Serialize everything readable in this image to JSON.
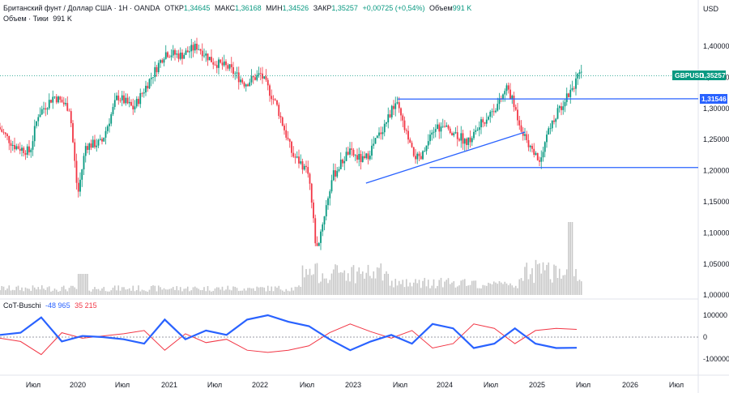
{
  "header": {
    "symbol_line": "Британский фунт / Доллар США · 1Н · OANDA",
    "open_label": "ОТКР",
    "open": "1,34645",
    "high_label": "МАКС",
    "high": "1,36168",
    "low_label": "МИН",
    "low": "1,34526",
    "close_label": "ЗАКР",
    "close": "1,35257",
    "change": "+0,00725 (+0,54%)",
    "volume_label": "Объем",
    "volume": "991 K",
    "volume_line": "Объем · Тики",
    "volume_line_value": "991 K"
  },
  "price_axis": {
    "currency": "USD",
    "ticks": [
      "1,40000",
      "1,35000",
      "1,30000",
      "1,25000",
      "1,20000",
      "1,15000",
      "1,10000",
      "1,05000",
      "1,00000"
    ],
    "current_label": "GBPUSD",
    "current_value": "1,35257",
    "level_value": "1,31546"
  },
  "cot_panel": {
    "name": "CoT-Buschi",
    "value1": "-48 965",
    "value2": "35 215",
    "ticks": [
      "100000",
      "0",
      "-100000"
    ]
  },
  "time_axis": {
    "labels": [
      "Июл",
      "2020",
      "Июл",
      "2021",
      "Июл",
      "2022",
      "Июл",
      "2023",
      "Июл",
      "2024",
      "Июл",
      "2025",
      "Июл",
      "2026",
      "Июл"
    ]
  },
  "colors": {
    "up": "#089981",
    "down": "#f23645",
    "trendline": "#2962ff",
    "cot_blue": "#2962ff",
    "cot_red": "#f23645",
    "volume": "#c8c8c8",
    "current_price": "#089981"
  },
  "chart_data": {
    "type": "candlestick",
    "symbol": "GBPUSD",
    "timeframe": "weekly bars",
    "price_range": [
      0.985,
      1.455
    ],
    "close_points": [
      [
        "2019-05",
        1.27
      ],
      [
        "2019-07",
        1.24
      ],
      [
        "2019-09",
        1.23
      ],
      [
        "2019-10",
        1.29
      ],
      [
        "2019-12",
        1.32
      ],
      [
        "2020-02",
        1.3
      ],
      [
        "2020-03",
        1.16
      ],
      [
        "2020-04",
        1.24
      ],
      [
        "2020-06",
        1.245
      ],
      [
        "2020-08",
        1.32
      ],
      [
        "2020-10",
        1.3
      ],
      [
        "2020-12",
        1.345
      ],
      [
        "2021-02",
        1.39
      ],
      [
        "2021-04",
        1.385
      ],
      [
        "2021-06",
        1.4
      ],
      [
        "2021-08",
        1.375
      ],
      [
        "2021-10",
        1.365
      ],
      [
        "2021-12",
        1.34
      ],
      [
        "2022-02",
        1.355
      ],
      [
        "2022-04",
        1.305
      ],
      [
        "2022-06",
        1.225
      ],
      [
        "2022-08",
        1.2
      ],
      [
        "2022-09",
        1.07
      ],
      [
        "2022-11",
        1.19
      ],
      [
        "2023-01",
        1.23
      ],
      [
        "2023-03",
        1.215
      ],
      [
        "2023-05",
        1.26
      ],
      [
        "2023-07",
        1.31
      ],
      [
        "2023-09",
        1.23
      ],
      [
        "2023-10",
        1.215
      ],
      [
        "2023-12",
        1.27
      ],
      [
        "2024-02",
        1.265
      ],
      [
        "2024-04",
        1.245
      ],
      [
        "2024-06",
        1.28
      ],
      [
        "2024-08",
        1.31
      ],
      [
        "2024-09",
        1.335
      ],
      [
        "2024-11",
        1.26
      ],
      [
        "2025-01",
        1.215
      ],
      [
        "2025-02",
        1.26
      ],
      [
        "2025-04",
        1.31
      ],
      [
        "2025-06",
        1.352
      ]
    ],
    "trendlines": [
      {
        "from": [
          "2023-03",
          1.18
        ],
        "to": [
          "2024-11",
          1.262
        ]
      },
      {
        "from": [
          "2023-07",
          1.315
        ],
        "to": [
          "2026-12",
          1.3155
        ],
        "label": "1,31546"
      },
      {
        "from": [
          "2023-11",
          1.205
        ],
        "to": [
          "2026-12",
          1.205
        ]
      }
    ],
    "cot": {
      "name": "CoT-Buschi",
      "range": [
        -150000,
        150000
      ],
      "blue": [
        [
          0,
          10000
        ],
        [
          2,
          20000
        ],
        [
          4,
          90000
        ],
        [
          6,
          -20000
        ],
        [
          8,
          5000
        ],
        [
          10,
          0
        ],
        [
          12,
          -10000
        ],
        [
          14,
          -30000
        ],
        [
          16,
          80000
        ],
        [
          18,
          -10000
        ],
        [
          20,
          30000
        ],
        [
          22,
          10000
        ],
        [
          24,
          80000
        ],
        [
          26,
          100000
        ],
        [
          28,
          70000
        ],
        [
          30,
          50000
        ],
        [
          32,
          -10000
        ],
        [
          34,
          -60000
        ],
        [
          36,
          -20000
        ],
        [
          38,
          10000
        ],
        [
          40,
          -30000
        ],
        [
          42,
          60000
        ],
        [
          44,
          40000
        ],
        [
          46,
          -50000
        ],
        [
          48,
          -30000
        ],
        [
          50,
          40000
        ],
        [
          52,
          -30000
        ],
        [
          54,
          -50000
        ],
        [
          56,
          -48965
        ]
      ],
      "red": [
        [
          0,
          -5000
        ],
        [
          2,
          -20000
        ],
        [
          4,
          -80000
        ],
        [
          6,
          20000
        ],
        [
          8,
          -5000
        ],
        [
          10,
          5000
        ],
        [
          12,
          15000
        ],
        [
          14,
          30000
        ],
        [
          16,
          -60000
        ],
        [
          18,
          15000
        ],
        [
          20,
          -25000
        ],
        [
          22,
          -10000
        ],
        [
          24,
          -60000
        ],
        [
          26,
          -70000
        ],
        [
          28,
          -60000
        ],
        [
          30,
          -40000
        ],
        [
          32,
          20000
        ],
        [
          34,
          60000
        ],
        [
          36,
          25000
        ],
        [
          38,
          -5000
        ],
        [
          40,
          30000
        ],
        [
          42,
          -50000
        ],
        [
          44,
          -30000
        ],
        [
          46,
          60000
        ],
        [
          48,
          40000
        ],
        [
          50,
          -30000
        ],
        [
          52,
          30000
        ],
        [
          54,
          40000
        ],
        [
          56,
          35215
        ]
      ]
    }
  }
}
